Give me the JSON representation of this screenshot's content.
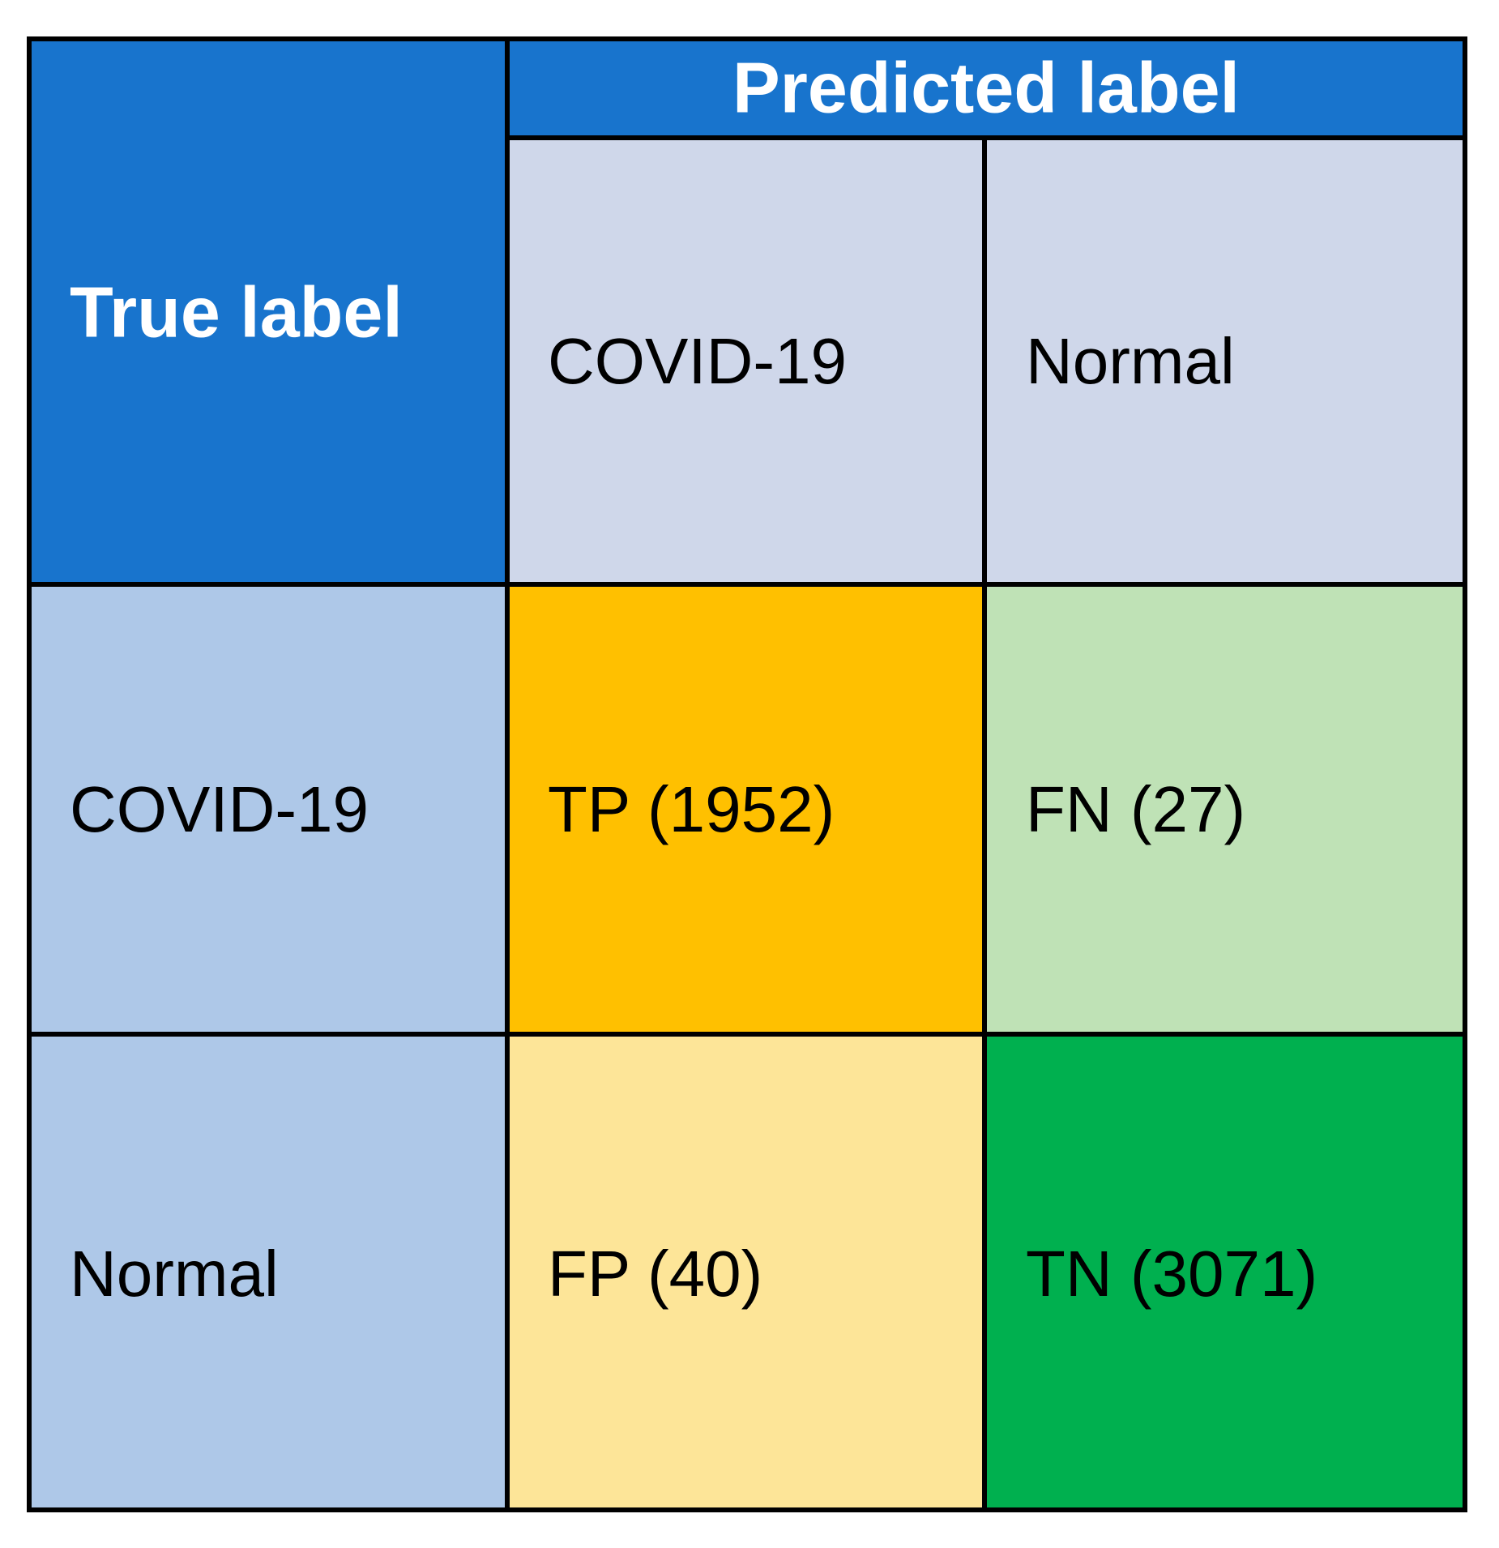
{
  "table": {
    "corner": "True label",
    "column_header": "Predicted label",
    "columns": [
      "COVID-19",
      "Normal"
    ],
    "rows": [
      {
        "label": "COVID-19",
        "cells": [
          "TP (1952)",
          "FN (27)"
        ]
      },
      {
        "label": "Normal",
        "cells": [
          "FP (40)",
          "TN (3071)"
        ]
      }
    ]
  }
}
